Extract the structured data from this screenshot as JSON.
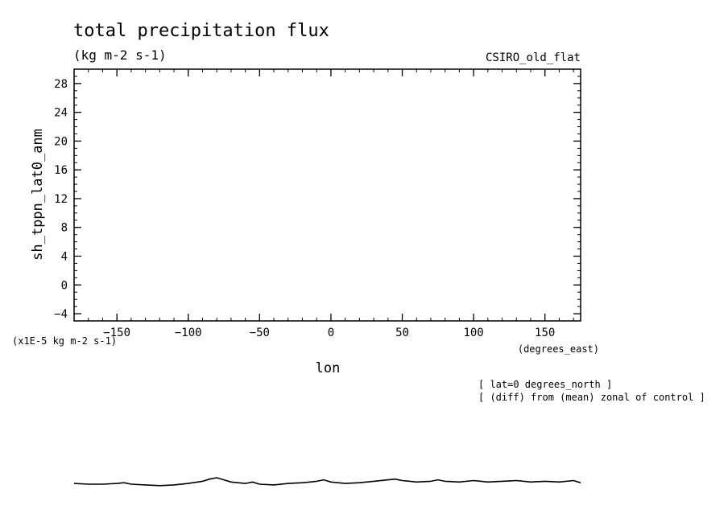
{
  "chart_data": {
    "type": "line",
    "title": "total precipitation flux",
    "units": "(kg m-2 s-1)",
    "model": "CSIRO_old_flat",
    "xlabel": "lon",
    "xunits": "(degrees_east)",
    "ylabel": "sh_tppn_lat0_anm",
    "yunits": "(x1E-5 kg m-2 s-1)",
    "xlim": [
      -180,
      175
    ],
    "ylim": [
      -5,
      30
    ],
    "xticks": [
      -150,
      -100,
      -50,
      0,
      50,
      100,
      150
    ],
    "yticks": [
      -4,
      0,
      4,
      8,
      12,
      16,
      20,
      24,
      28
    ],
    "notes": [
      "[ lat=0 degrees_north ]",
      "[ (diff) from (mean) zonal of control ]"
    ],
    "series": [
      {
        "x": [
          -180,
          -170,
          -160,
          -150,
          -145,
          -140,
          -130,
          -120,
          -110,
          -100,
          -90,
          -85,
          -80,
          -75,
          -70,
          -60,
          -55,
          -50,
          -40,
          -30,
          -20,
          -10,
          -5,
          0,
          10,
          20,
          30,
          40,
          45,
          50,
          60,
          70,
          75,
          80,
          90,
          100,
          110,
          120,
          130,
          140,
          150,
          160,
          170,
          175
        ],
        "y": [
          -27.6,
          -27.7,
          -27.7,
          -27.6,
          -27.5,
          -27.7,
          -27.8,
          -27.9,
          -27.8,
          -27.6,
          -27.3,
          -27.0,
          -26.8,
          -27.1,
          -27.4,
          -27.6,
          -27.4,
          -27.7,
          -27.8,
          -27.6,
          -27.5,
          -27.3,
          -27.1,
          -27.4,
          -27.6,
          -27.5,
          -27.3,
          -27.1,
          -27.0,
          -27.2,
          -27.4,
          -27.3,
          -27.1,
          -27.3,
          -27.4,
          -27.2,
          -27.4,
          -27.3,
          -27.2,
          -27.4,
          -27.3,
          -27.4,
          -27.2,
          -27.5
        ]
      }
    ]
  }
}
